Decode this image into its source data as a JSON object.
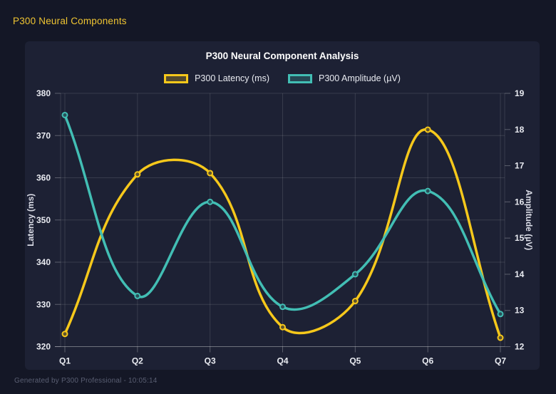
{
  "page": {
    "header": "P300 Neural Components",
    "footer": "Generated by P300 Professional - 10:05:14"
  },
  "colors": {
    "page_background": "#141726",
    "card_background": "#1D2134",
    "header_text": "#F0C532",
    "title_text": "#FFFFFF",
    "tick_text": "#E9EBF1",
    "footer_text": "#5A5F73",
    "grid": "rgba(255,255,255,0.12)",
    "axis_line": "rgba(255,255,255,0.28)",
    "latency_series": "#F6C81B",
    "amplitude_series": "#42BEB4"
  },
  "chart_data": {
    "type": "line",
    "title": "P300 Neural Component Analysis",
    "categories": [
      "Q1",
      "Q2",
      "Q3",
      "Q4",
      "Q5",
      "Q6",
      "Q7"
    ],
    "series": [
      {
        "name": "P300 Latency (ms)",
        "axis": "left",
        "color": "#F6C81B",
        "values": [
          323.0,
          360.8,
          361.1,
          324.6,
          330.8,
          371.4,
          322.1
        ]
      },
      {
        "name": "P300 Amplitude (µV)",
        "axis": "right",
        "color": "#42BEB4",
        "values": [
          18.4,
          13.4,
          16.0,
          13.1,
          14.0,
          16.3,
          12.9
        ]
      }
    ],
    "left_axis": {
      "label": "Latency (ms)",
      "min": 320,
      "max": 380,
      "step": 10
    },
    "right_axis": {
      "label": "Amplitude (µV)",
      "min": 12,
      "max": 19,
      "step": 1
    },
    "legend_position": "top",
    "grid": true,
    "smoothing": 0.4
  }
}
